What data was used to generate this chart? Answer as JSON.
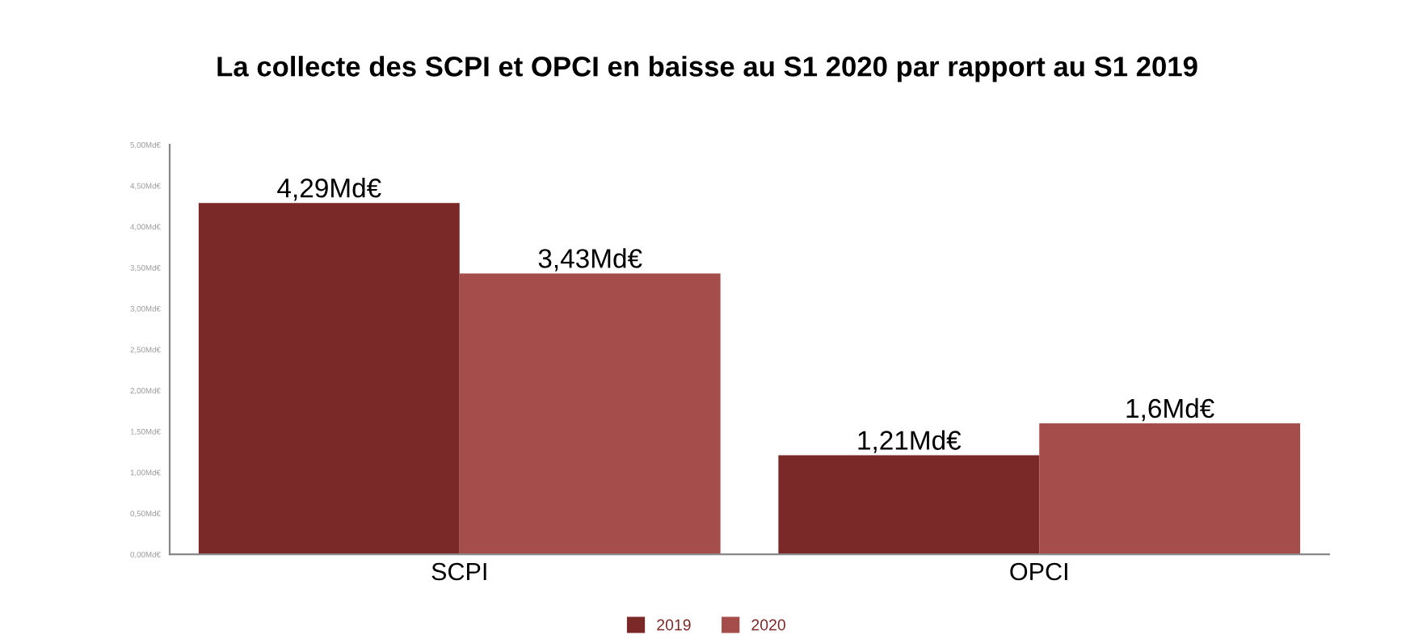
{
  "chart_data": {
    "type": "bar",
    "title": "La collecte des SCPI et OPCI en baisse au S1 2020 par rapport au S1 2019",
    "categories": [
      "SCPI",
      "OPCI"
    ],
    "series": [
      {
        "name": "2019",
        "color": "#7b2828",
        "values": [
          4.29,
          1.21
        ],
        "value_labels": [
          "4,29Md€",
          "1,21Md€"
        ]
      },
      {
        "name": "2020",
        "color": "#a54d4a",
        "values": [
          3.43,
          1.6
        ],
        "value_labels": [
          "3,43Md€",
          "1,6Md€"
        ]
      }
    ],
    "ylim": [
      0,
      5
    ],
    "yticks": [
      {
        "value": 0,
        "label": "0,00Md€"
      },
      {
        "value": 0.5,
        "label": "0,50Md€"
      },
      {
        "value": 1,
        "label": "1,00Md€"
      },
      {
        "value": 1.5,
        "label": "1,50Md€"
      },
      {
        "value": 2,
        "label": "2,00Md€"
      },
      {
        "value": 2.5,
        "label": "2,50Md€"
      },
      {
        "value": 3,
        "label": "3,00Md€"
      },
      {
        "value": 3.5,
        "label": "3,50Md€"
      },
      {
        "value": 4,
        "label": "4,00Md€"
      },
      {
        "value": 4.5,
        "label": "4,50Md€"
      },
      {
        "value": 5,
        "label": "5,00Md€"
      }
    ],
    "grid": false,
    "legend": "bottom"
  }
}
